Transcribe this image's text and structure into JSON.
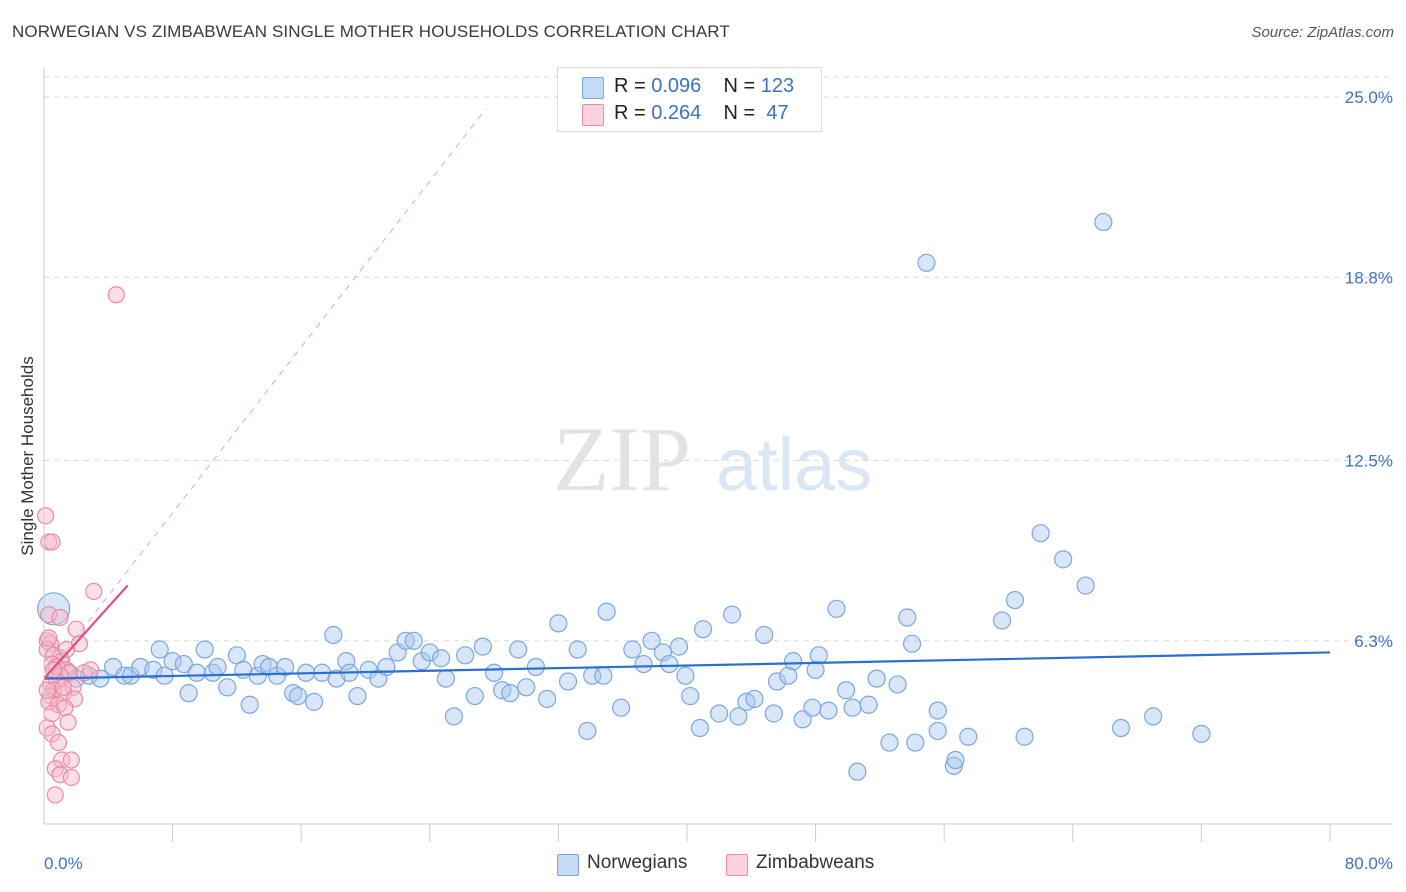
{
  "title": "NORWEGIAN VS ZIMBABWEAN SINGLE MOTHER HOUSEHOLDS CORRELATION CHART",
  "source": "Source: ZipAtlas.com",
  "watermark": {
    "zip": "ZIP",
    "atlas": "atlas"
  },
  "legend": {
    "rows": [
      {
        "r_label": "R =",
        "r_value": "0.096",
        "n_label": "N =",
        "n_value": "123",
        "color": "#a9c8ef"
      },
      {
        "r_label": "R =",
        "r_value": "0.264",
        "n_label": "N =",
        "n_value": "47",
        "color": "#f7b8c8"
      }
    ]
  },
  "bottom_legend": [
    {
      "label": "Norwegians",
      "color": "#a9c8ef"
    },
    {
      "label": "Zimbabweans",
      "color": "#f7b8c8"
    }
  ],
  "colors": {
    "norwegian_fill": "#a9c8ef",
    "norwegian_stroke": "#7aa7de",
    "norwegian_line": "#2a6fd1",
    "zimbabwean_fill": "#f7b8c8",
    "zimbabwean_stroke": "#ea8aa6",
    "zimbabwean_line": "#e0507f",
    "tick_label": "#3a72c9",
    "grid": "#d8d8d8",
    "axis": "#cccccc"
  },
  "chart_data": {
    "type": "scatter",
    "xlabel": "",
    "ylabel": "Single Mother Households",
    "xlim": [
      0,
      80
    ],
    "ylim": [
      0,
      25
    ],
    "x_tick_labels": [
      {
        "value": 0,
        "label": "0.0%"
      },
      {
        "value": 80,
        "label": "80.0%"
      }
    ],
    "x_minor_ticks": [
      8,
      16,
      24,
      32,
      40,
      48,
      56,
      64,
      72,
      80
    ],
    "y_ticks": [
      {
        "value": 6.3,
        "label": "6.3%"
      },
      {
        "value": 12.5,
        "label": "12.5%"
      },
      {
        "value": 18.8,
        "label": "18.8%"
      },
      {
        "value": 25.0,
        "label": "25.0%"
      }
    ],
    "grid": true,
    "series": [
      {
        "name": "Norwegians",
        "trend": {
          "x": [
            0,
            80
          ],
          "y": [
            5.0,
            5.9
          ]
        },
        "points": [
          [
            0.6,
            7.4
          ],
          [
            1.0,
            5.7
          ],
          [
            1.5,
            5.2
          ],
          [
            2.0,
            5.0
          ],
          [
            2.8,
            5.1
          ],
          [
            3.5,
            5.0
          ],
          [
            4.3,
            5.4
          ],
          [
            5.0,
            5.1
          ],
          [
            5.4,
            5.1
          ],
          [
            6.0,
            5.4
          ],
          [
            6.8,
            5.3
          ],
          [
            7.2,
            6.0
          ],
          [
            7.5,
            5.1
          ],
          [
            8.0,
            5.6
          ],
          [
            8.7,
            5.5
          ],
          [
            9.0,
            4.5
          ],
          [
            9.5,
            5.2
          ],
          [
            10.0,
            6.0
          ],
          [
            10.5,
            5.2
          ],
          [
            10.8,
            5.4
          ],
          [
            11.4,
            4.7
          ],
          [
            12.0,
            5.8
          ],
          [
            12.4,
            5.3
          ],
          [
            12.8,
            4.1
          ],
          [
            13.3,
            5.1
          ],
          [
            13.6,
            5.5
          ],
          [
            14.0,
            5.4
          ],
          [
            14.5,
            5.1
          ],
          [
            15.0,
            5.4
          ],
          [
            15.5,
            4.5
          ],
          [
            15.8,
            4.4
          ],
          [
            16.3,
            5.2
          ],
          [
            16.8,
            4.2
          ],
          [
            17.3,
            5.2
          ],
          [
            18.0,
            6.5
          ],
          [
            18.2,
            5.0
          ],
          [
            18.8,
            5.6
          ],
          [
            19.0,
            5.2
          ],
          [
            19.5,
            4.4
          ],
          [
            20.2,
            5.3
          ],
          [
            20.8,
            5.0
          ],
          [
            21.3,
            5.4
          ],
          [
            22.0,
            5.9
          ],
          [
            22.5,
            6.3
          ],
          [
            23.0,
            6.3
          ],
          [
            23.5,
            5.6
          ],
          [
            24.0,
            5.9
          ],
          [
            24.7,
            5.7
          ],
          [
            25.0,
            5.0
          ],
          [
            25.5,
            3.7
          ],
          [
            26.2,
            5.8
          ],
          [
            26.8,
            4.4
          ],
          [
            27.3,
            6.1
          ],
          [
            28.0,
            5.2
          ],
          [
            28.5,
            4.6
          ],
          [
            29.0,
            4.5
          ],
          [
            29.5,
            6.0
          ],
          [
            30.0,
            4.7
          ],
          [
            30.6,
            5.4
          ],
          [
            31.3,
            4.3
          ],
          [
            32.0,
            6.9
          ],
          [
            32.6,
            4.9
          ],
          [
            33.2,
            6.0
          ],
          [
            33.8,
            3.2
          ],
          [
            34.1,
            5.1
          ],
          [
            34.8,
            5.1
          ],
          [
            35.0,
            7.3
          ],
          [
            35.9,
            4.0
          ],
          [
            36.6,
            6.0
          ],
          [
            37.3,
            5.5
          ],
          [
            37.8,
            6.3
          ],
          [
            38.5,
            5.9
          ],
          [
            38.9,
            5.5
          ],
          [
            39.5,
            6.1
          ],
          [
            39.9,
            5.1
          ],
          [
            40.2,
            4.4
          ],
          [
            40.8,
            3.3
          ],
          [
            41.0,
            6.7
          ],
          [
            42.0,
            3.8
          ],
          [
            42.8,
            7.2
          ],
          [
            43.2,
            3.7
          ],
          [
            43.7,
            4.2
          ],
          [
            44.2,
            4.3
          ],
          [
            44.8,
            6.5
          ],
          [
            45.4,
            3.8
          ],
          [
            45.6,
            4.9
          ],
          [
            46.3,
            5.1
          ],
          [
            46.6,
            5.6
          ],
          [
            47.2,
            3.6
          ],
          [
            47.8,
            4.0
          ],
          [
            48.0,
            5.3
          ],
          [
            48.2,
            5.8
          ],
          [
            48.8,
            3.9
          ],
          [
            49.3,
            7.4
          ],
          [
            49.9,
            4.6
          ],
          [
            50.3,
            4.0
          ],
          [
            50.6,
            1.8
          ],
          [
            51.3,
            4.1
          ],
          [
            51.8,
            5.0
          ],
          [
            52.6,
            2.8
          ],
          [
            53.1,
            4.8
          ],
          [
            53.7,
            7.1
          ],
          [
            54.0,
            6.2
          ],
          [
            54.2,
            2.8
          ],
          [
            54.9,
            19.3
          ],
          [
            55.6,
            3.2
          ],
          [
            55.6,
            3.9
          ],
          [
            56.6,
            2.0
          ],
          [
            56.7,
            2.2
          ],
          [
            57.5,
            3.0
          ],
          [
            59.6,
            7.0
          ],
          [
            60.4,
            7.7
          ],
          [
            61.0,
            3.0
          ],
          [
            62.0,
            10.0
          ],
          [
            63.4,
            9.1
          ],
          [
            64.8,
            8.2
          ],
          [
            65.9,
            20.7
          ],
          [
            67.0,
            3.3
          ],
          [
            69.0,
            3.7
          ],
          [
            72.0,
            3.1
          ]
        ]
      },
      {
        "name": "Zimbabweans",
        "trend": {
          "x": [
            0.0,
            5.2
          ],
          "y": [
            5.0,
            8.2
          ]
        },
        "trend_extended": {
          "x": [
            0.0,
            27.5
          ],
          "y": [
            5.0,
            24.6
          ]
        },
        "points": [
          [
            0.1,
            10.6
          ],
          [
            0.3,
            9.7
          ],
          [
            0.5,
            9.7
          ],
          [
            3.1,
            8.0
          ],
          [
            4.5,
            18.2
          ],
          [
            0.3,
            7.2
          ],
          [
            1.0,
            7.1
          ],
          [
            2.0,
            6.7
          ],
          [
            0.2,
            6.3
          ],
          [
            0.4,
            6.2
          ],
          [
            2.2,
            6.2
          ],
          [
            0.2,
            6.0
          ],
          [
            0.6,
            5.8
          ],
          [
            1.1,
            5.6
          ],
          [
            0.5,
            5.5
          ],
          [
            0.8,
            5.4
          ],
          [
            1.4,
            5.3
          ],
          [
            1.6,
            5.2
          ],
          [
            2.5,
            5.2
          ],
          [
            1.0,
            5.1
          ],
          [
            0.8,
            4.9
          ],
          [
            0.4,
            4.8
          ],
          [
            1.8,
            4.7
          ],
          [
            0.6,
            4.6
          ],
          [
            1.2,
            4.5
          ],
          [
            0.4,
            4.4
          ],
          [
            1.9,
            4.3
          ],
          [
            0.3,
            4.2
          ],
          [
            0.9,
            4.1
          ],
          [
            1.3,
            4.0
          ],
          [
            0.5,
            3.8
          ],
          [
            1.5,
            3.5
          ],
          [
            0.2,
            3.3
          ],
          [
            0.5,
            3.1
          ],
          [
            0.9,
            2.8
          ],
          [
            1.1,
            2.2
          ],
          [
            1.7,
            2.2
          ],
          [
            0.7,
            1.9
          ],
          [
            1.0,
            1.7
          ],
          [
            1.7,
            1.6
          ],
          [
            0.7,
            1.0
          ],
          [
            0.3,
            6.4
          ],
          [
            1.4,
            6.0
          ],
          [
            0.6,
            5.3
          ],
          [
            2.9,
            5.3
          ],
          [
            0.2,
            4.6
          ],
          [
            1.2,
            4.7
          ]
        ]
      }
    ]
  }
}
